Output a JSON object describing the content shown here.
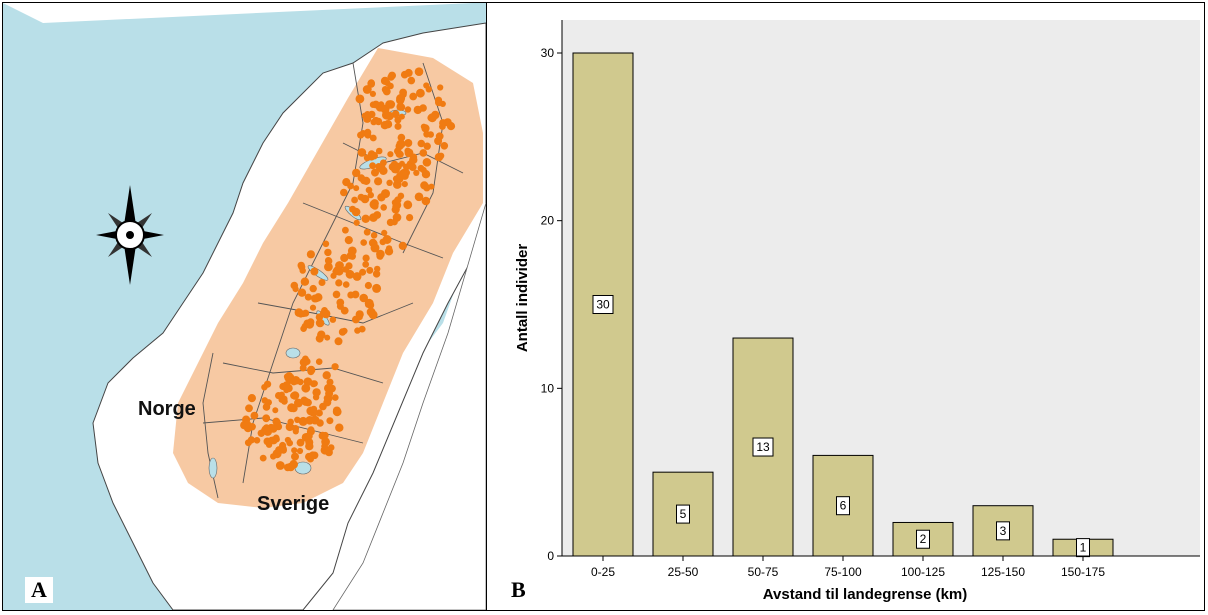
{
  "panel_a": {
    "letter": "A",
    "labels": {
      "norway": "Norge",
      "sweden": "Sverige"
    },
    "colors": {
      "sea": "#b9dfe8",
      "range": "#f7c9a3",
      "points": "#f07b12",
      "land": "#ffffff",
      "border": "#555555"
    }
  },
  "panel_b": {
    "letter": "B",
    "colors": {
      "plot_bg": "#ececec",
      "bar_fill": "#d0c98e",
      "bar_stroke": "#000000"
    }
  },
  "chart_data": {
    "type": "bar",
    "categories": [
      "0-25",
      "25-50",
      "50-75",
      "75-100",
      "100-125",
      "125-150",
      "150-175"
    ],
    "values": [
      30,
      5,
      13,
      6,
      2,
      3,
      1
    ],
    "data_labels": [
      "30",
      "5",
      "13",
      "6",
      "2",
      "3",
      "1"
    ],
    "xlabel": "Avstand til landegrense (km)",
    "ylabel": "Antall individer",
    "ylim": [
      0,
      30
    ],
    "yticks": [
      "0",
      "10",
      "20",
      "30"
    ],
    "grid": false,
    "legend": "none"
  }
}
